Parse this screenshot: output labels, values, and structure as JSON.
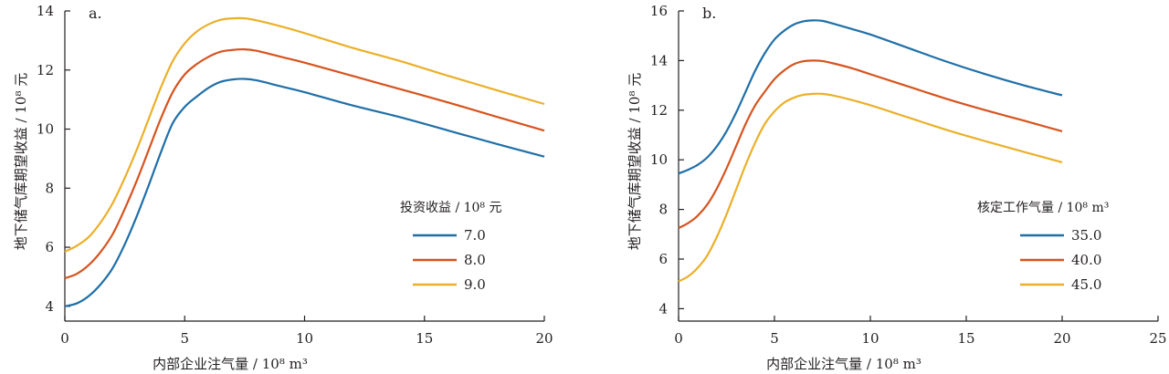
{
  "chart_data": [
    {
      "panel_label": "a.",
      "type": "line",
      "xlabel": "内部企业注气量 / 10⁸ m³",
      "ylabel": "地下储气库期望收益 / 10⁸ 元",
      "xlim": [
        0,
        20
      ],
      "ylim": [
        3.5,
        14
      ],
      "xticks": [
        0,
        5,
        10,
        15,
        20
      ],
      "yticks": [
        4,
        6,
        8,
        10,
        12,
        14
      ],
      "legend_title": "投资收益 / 10⁸ 元",
      "legend_position": "center-right",
      "grid": false,
      "series": [
        {
          "name": "7.0",
          "color": "#1f6fa8",
          "x": [
            0,
            0.5,
            1,
            1.5,
            2,
            2.5,
            3,
            3.5,
            4,
            4.5,
            5,
            5.5,
            6,
            6.5,
            7,
            7.5,
            8,
            9,
            10,
            12,
            14,
            16,
            18,
            20
          ],
          "y": [
            4.0,
            4.1,
            4.35,
            4.75,
            5.3,
            6.1,
            7.05,
            8.1,
            9.2,
            10.2,
            10.75,
            11.1,
            11.4,
            11.6,
            11.68,
            11.7,
            11.65,
            11.45,
            11.25,
            10.8,
            10.4,
            9.95,
            9.5,
            9.07
          ]
        },
        {
          "name": "8.0",
          "color": "#d6541f",
          "x": [
            0,
            0.5,
            1,
            1.5,
            2,
            2.5,
            3,
            3.5,
            4,
            4.5,
            5,
            5.5,
            6,
            6.5,
            7,
            7.5,
            8,
            9,
            10,
            12,
            14,
            16,
            18,
            20
          ],
          "y": [
            4.95,
            5.1,
            5.4,
            5.85,
            6.45,
            7.3,
            8.25,
            9.3,
            10.35,
            11.25,
            11.85,
            12.2,
            12.45,
            12.62,
            12.68,
            12.7,
            12.65,
            12.45,
            12.25,
            11.8,
            11.35,
            10.9,
            10.42,
            9.95
          ]
        },
        {
          "name": "9.0",
          "color": "#ebb02a",
          "x": [
            0,
            0.5,
            1,
            1.5,
            2,
            2.5,
            3,
            3.5,
            4,
            4.5,
            5,
            5.5,
            6,
            6.5,
            7,
            7.5,
            8,
            9,
            10,
            12,
            14,
            16,
            18,
            20
          ],
          "y": [
            5.85,
            6.05,
            6.35,
            6.85,
            7.5,
            8.35,
            9.3,
            10.35,
            11.4,
            12.3,
            12.9,
            13.3,
            13.55,
            13.7,
            13.75,
            13.75,
            13.68,
            13.48,
            13.25,
            12.75,
            12.3,
            11.8,
            11.32,
            10.85
          ]
        }
      ]
    },
    {
      "panel_label": "b.",
      "type": "line",
      "xlabel": "内部企业注气量 / 10⁸ m³",
      "ylabel": "地下储气库期望收益 / 10⁸ 元",
      "xlim": [
        0,
        25
      ],
      "ylim": [
        3.5,
        16
      ],
      "xticks": [
        0,
        5,
        10,
        15,
        20,
        25
      ],
      "yticks": [
        4,
        6,
        8,
        10,
        12,
        14,
        16
      ],
      "legend_title": "核定工作气量 / 10⁸ m³",
      "legend_position": "center-right",
      "grid": false,
      "series": [
        {
          "name": "35.0",
          "color": "#1f6fa8",
          "x": [
            0,
            0.5,
            1,
            1.5,
            2,
            2.5,
            3,
            3.5,
            4,
            4.5,
            5,
            5.5,
            6,
            6.5,
            7,
            7.5,
            8,
            9,
            10,
            12,
            14,
            16,
            18,
            20
          ],
          "y": [
            9.45,
            9.6,
            9.8,
            10.1,
            10.55,
            11.15,
            11.9,
            12.75,
            13.6,
            14.3,
            14.85,
            15.2,
            15.45,
            15.58,
            15.62,
            15.6,
            15.5,
            15.28,
            15.05,
            14.5,
            13.95,
            13.45,
            13.0,
            12.6
          ]
        },
        {
          "name": "40.0",
          "color": "#d6541f",
          "x": [
            0,
            0.5,
            1,
            1.5,
            2,
            2.5,
            3,
            3.5,
            4,
            4.5,
            5,
            5.5,
            6,
            6.5,
            7,
            7.5,
            8,
            9,
            10,
            12,
            14,
            16,
            18,
            20
          ],
          "y": [
            7.25,
            7.45,
            7.75,
            8.2,
            8.85,
            9.65,
            10.55,
            11.45,
            12.2,
            12.75,
            13.25,
            13.6,
            13.85,
            13.97,
            14.0,
            13.98,
            13.9,
            13.7,
            13.45,
            12.95,
            12.45,
            12.0,
            11.58,
            11.15
          ]
        },
        {
          "name": "45.0",
          "color": "#ebb02a",
          "x": [
            0,
            0.5,
            1,
            1.5,
            2,
            2.5,
            3,
            3.5,
            4,
            4.5,
            5,
            5.5,
            6,
            6.5,
            7,
            7.5,
            8,
            9,
            10,
            12,
            14,
            16,
            18,
            20
          ],
          "y": [
            5.1,
            5.3,
            5.65,
            6.15,
            6.9,
            7.8,
            8.8,
            9.8,
            10.7,
            11.45,
            11.95,
            12.3,
            12.5,
            12.62,
            12.66,
            12.66,
            12.6,
            12.42,
            12.2,
            11.7,
            11.2,
            10.75,
            10.32,
            9.9
          ]
        }
      ]
    }
  ]
}
